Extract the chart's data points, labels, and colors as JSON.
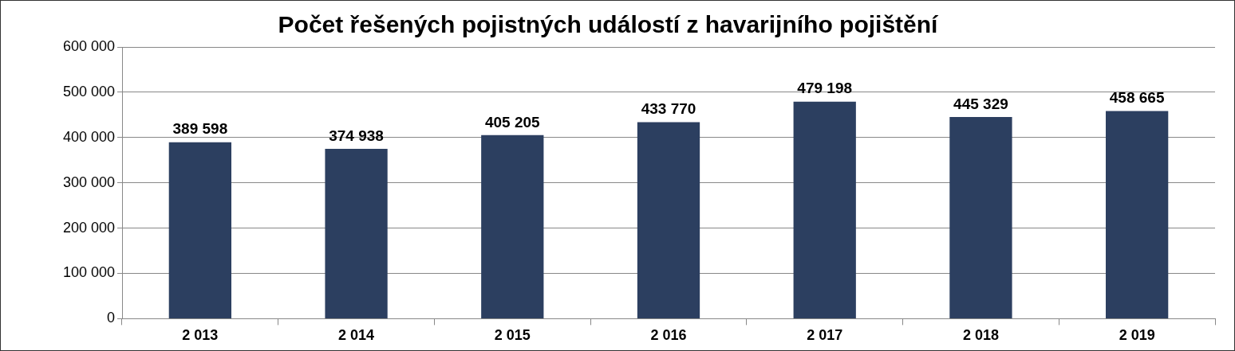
{
  "chart_data": {
    "type": "bar",
    "title": "Počet řešených pojistných událostí z havarijního pojištění",
    "categories": [
      "2 013",
      "2 014",
      "2 015",
      "2 016",
      "2 017",
      "2 018",
      "2 019"
    ],
    "values": [
      389598,
      374938,
      405205,
      433770,
      479198,
      445329,
      458665
    ],
    "value_labels": [
      "389 598",
      "374 938",
      "405 205",
      "433 770",
      "479 198",
      "445 329",
      "458 665"
    ],
    "color": "#2c3f60",
    "ylim": [
      0,
      600000
    ],
    "yticks": [
      0,
      {
        "value": 100000,
        "label": "100 000"
      },
      {
        "value": 200000,
        "label": "200 000"
      },
      {
        "value": 300000,
        "label": "300 000"
      },
      {
        "value": 400000,
        "label": "400 000"
      },
      {
        "value": 500000,
        "label": "500 000"
      },
      {
        "value": 600000,
        "label": "600 000"
      }
    ],
    "grid": "y",
    "legend": false
  }
}
